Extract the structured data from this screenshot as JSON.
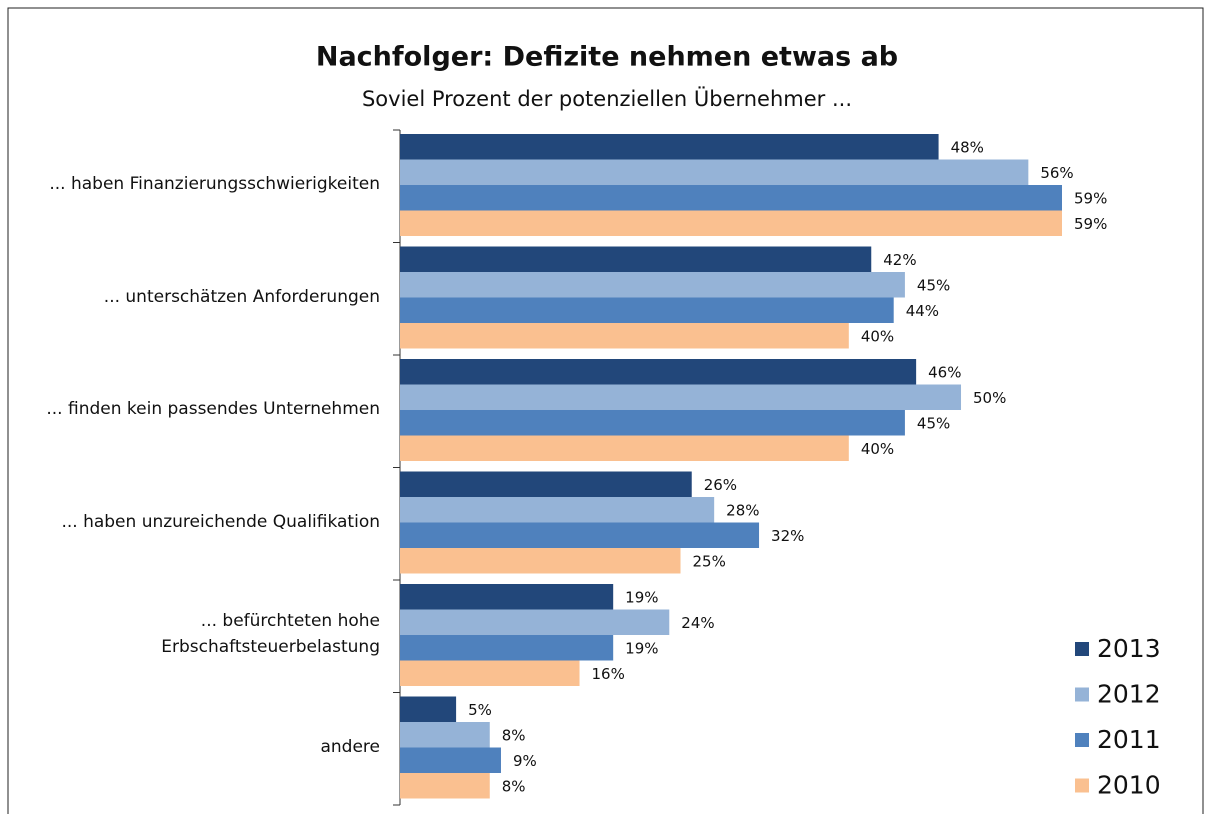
{
  "chart_data": {
    "type": "bar",
    "orientation": "horizontal",
    "title": "Nachfolger: Defizite nehmen etwas ab",
    "subtitle": "Soviel Prozent der potenziellen Übernehmer ...",
    "categories": [
      "... haben Finanzierungsschwierigkeiten",
      "... unterschätzen Anforderungen",
      "... finden kein passendes Unternehmen",
      "... haben unzureichende Qualifikation",
      "... befürchteten hohe\nErbschaftsteuerbelastung",
      "andere"
    ],
    "series": [
      {
        "name": "2013",
        "color": "#22477a",
        "values": [
          48,
          42,
          46,
          26,
          19,
          5
        ],
        "value_labels": [
          "48%",
          "42%",
          "46%",
          "26%",
          "19%",
          "5%"
        ]
      },
      {
        "name": "2012",
        "color": "#95b3d7",
        "values": [
          56,
          45,
          50,
          28,
          24,
          8
        ],
        "value_labels": [
          "56%",
          "45%",
          "50%",
          "28%",
          "24%",
          "8%"
        ]
      },
      {
        "name": "2011",
        "color": "#4f81bd",
        "values": [
          59,
          44,
          45,
          32,
          19,
          9
        ],
        "value_labels": [
          "59%",
          "44%",
          "45%",
          "32%",
          "19%",
          "9%"
        ]
      },
      {
        "name": "2010",
        "color": "#fac090",
        "values": [
          59,
          40,
          40,
          25,
          16,
          8
        ],
        "value_labels": [
          "59%",
          "40%",
          "40%",
          "25%",
          "16%",
          "8%"
        ]
      }
    ],
    "legend": "lower right"
  }
}
